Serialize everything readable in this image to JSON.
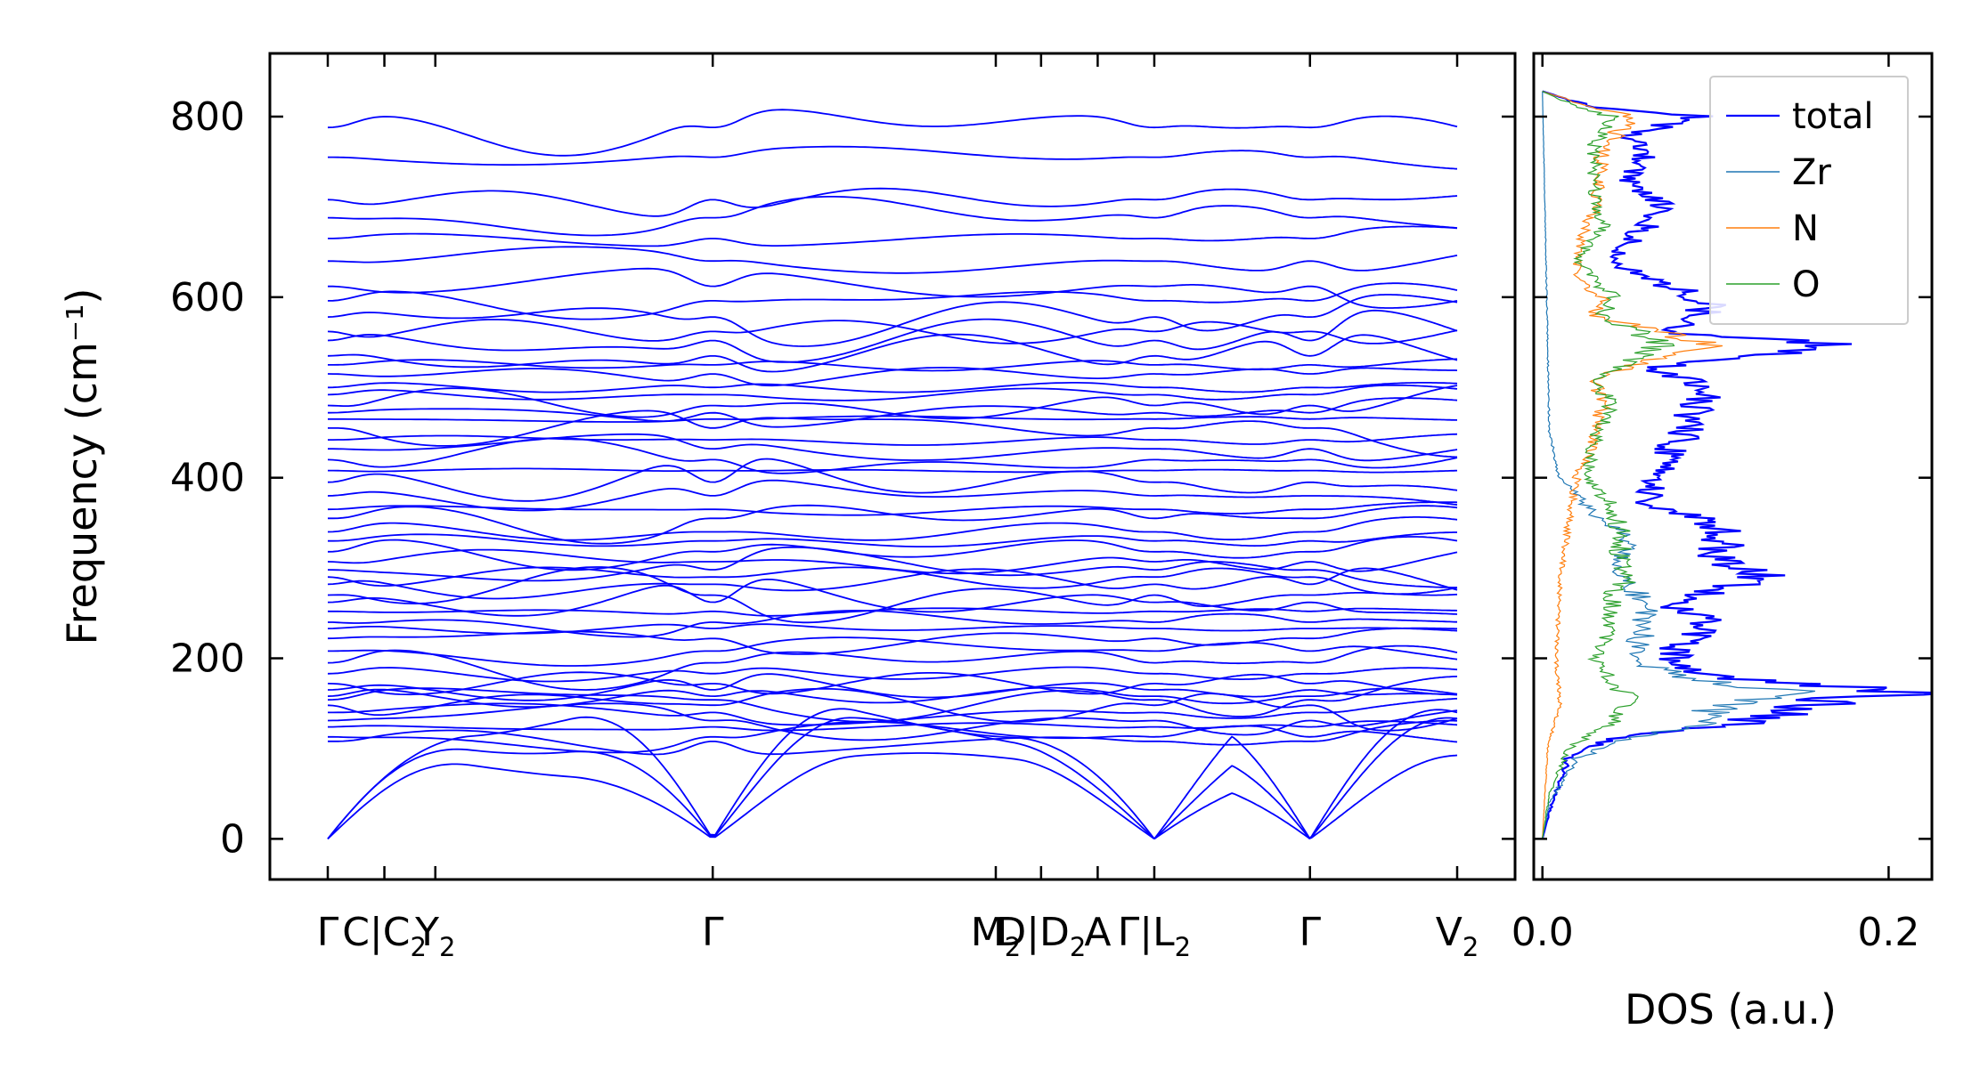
{
  "chart_data": [
    {
      "type": "line",
      "subtype": "phonon-band-structure",
      "ylabel": "Frequency (cm⁻¹)",
      "ylim": [
        -45,
        870
      ],
      "yticks": [
        0,
        200,
        400,
        600,
        800
      ],
      "line_color": "#0000ff",
      "segments": [
        {
          "kpath": [
            0,
            0.2,
            0.38,
            1.36,
            2.36,
            2.52,
            2.72,
            2.92
          ]
        },
        {
          "kpath": [
            2.92,
            3.47,
            3.99
          ]
        }
      ],
      "xtick_labels": [
        {
          "k": 0,
          "text": "Γ"
        },
        {
          "k": 0.2,
          "text": "C|C",
          "sub": "2"
        },
        {
          "k": 0.38,
          "text": "Y",
          "sub": "2"
        },
        {
          "k": 1.36,
          "text": "Γ"
        },
        {
          "k": 2.36,
          "text": "M",
          "sub": "2"
        },
        {
          "k": 2.52,
          "text": "D|D",
          "sub": "2"
        },
        {
          "k": 2.72,
          "text": "A"
        },
        {
          "k": 2.92,
          "text": "Γ|L",
          "sub": "2"
        },
        {
          "k": 3.47,
          "text": "Γ"
        },
        {
          "k": 3.99,
          "text": "V",
          "sub": "2"
        }
      ],
      "gamma_frequencies": [
        0,
        0,
        0,
        108,
        113,
        124,
        131,
        140,
        148,
        154,
        158,
        165,
        172,
        183,
        195,
        208,
        222,
        233,
        240,
        252,
        262,
        270,
        282,
        290,
        298,
        307,
        318,
        330,
        340,
        355,
        365,
        380,
        395,
        408,
        420,
        432,
        442,
        455,
        465,
        472,
        480,
        492,
        500,
        515,
        525,
        535,
        552,
        562,
        578,
        596,
        612,
        640,
        665,
        688,
        708,
        755,
        788
      ]
    },
    {
      "type": "line",
      "subtype": "density-of-states",
      "xlabel": "DOS (a.u.)",
      "xlim": [
        -0.005,
        0.225
      ],
      "xticks": [
        0.0,
        0.2
      ],
      "xtick_labels": [
        "0.0",
        "0.2"
      ],
      "ylim": [
        -45,
        870
      ],
      "legend_position": "top-right",
      "series": [
        {
          "name": "total",
          "color": "#0000ff",
          "peaks": [
            [
              0,
              0
            ],
            [
              30,
              0.004
            ],
            [
              90,
              0.015
            ],
            [
              110,
              0.04
            ],
            [
              130,
              0.12
            ],
            [
              145,
              0.15
            ],
            [
              155,
              0.17
            ],
            [
              163,
              0.215
            ],
            [
              170,
              0.16
            ],
            [
              180,
              0.1
            ],
            [
              200,
              0.075
            ],
            [
              215,
              0.08
            ],
            [
              240,
              0.095
            ],
            [
              260,
              0.075
            ],
            [
              290,
              0.13
            ],
            [
              310,
              0.1
            ],
            [
              330,
              0.105
            ],
            [
              352,
              0.1
            ],
            [
              370,
              0.06
            ],
            [
              400,
              0.065
            ],
            [
              420,
              0.07
            ],
            [
              445,
              0.08
            ],
            [
              470,
              0.085
            ],
            [
              500,
              0.1
            ],
            [
              520,
              0.06
            ],
            [
              548,
              0.175
            ],
            [
              560,
              0.07
            ],
            [
              590,
              0.1
            ],
            [
              615,
              0.07
            ],
            [
              640,
              0.04
            ],
            [
              660,
              0.05
            ],
            [
              700,
              0.07
            ],
            [
              730,
              0.05
            ],
            [
              760,
              0.06
            ],
            [
              780,
              0.05
            ],
            [
              800,
              0.09
            ],
            [
              810,
              0.03
            ],
            [
              828,
              0.0
            ]
          ]
        },
        {
          "name": "Zr",
          "color": "#1f77b4",
          "peaks": [
            [
              0,
              0
            ],
            [
              40,
              0.004
            ],
            [
              90,
              0.02
            ],
            [
              110,
              0.05
            ],
            [
              130,
              0.1
            ],
            [
              145,
              0.1
            ],
            [
              155,
              0.12
            ],
            [
              163,
              0.15
            ],
            [
              175,
              0.09
            ],
            [
              200,
              0.05
            ],
            [
              230,
              0.06
            ],
            [
              260,
              0.06
            ],
            [
              290,
              0.045
            ],
            [
              330,
              0.05
            ],
            [
              360,
              0.03
            ],
            [
              400,
              0.01
            ],
            [
              450,
              0.004
            ],
            [
              550,
              0.003
            ],
            [
              650,
              0.002
            ],
            [
              828,
              0.0
            ]
          ]
        },
        {
          "name": "N",
          "color": "#ff7f0e",
          "peaks": [
            [
              0,
              0
            ],
            [
              100,
              0.003
            ],
            [
              150,
              0.01
            ],
            [
              200,
              0.008
            ],
            [
              280,
              0.01
            ],
            [
              350,
              0.015
            ],
            [
              400,
              0.02
            ],
            [
              440,
              0.03
            ],
            [
              480,
              0.035
            ],
            [
              510,
              0.03
            ],
            [
              548,
              0.095
            ],
            [
              580,
              0.03
            ],
            [
              600,
              0.035
            ],
            [
              620,
              0.02
            ],
            [
              650,
              0.02
            ],
            [
              700,
              0.03
            ],
            [
              760,
              0.035
            ],
            [
              800,
              0.05
            ],
            [
              815,
              0.02
            ],
            [
              828,
              0.0
            ]
          ]
        },
        {
          "name": "O",
          "color": "#2ca02c",
          "peaks": [
            [
              0,
              0
            ],
            [
              50,
              0.004
            ],
            [
              100,
              0.015
            ],
            [
              130,
              0.04
            ],
            [
              155,
              0.05
            ],
            [
              165,
              0.045
            ],
            [
              200,
              0.03
            ],
            [
              240,
              0.04
            ],
            [
              270,
              0.04
            ],
            [
              290,
              0.05
            ],
            [
              310,
              0.045
            ],
            [
              340,
              0.045
            ],
            [
              370,
              0.04
            ],
            [
              400,
              0.025
            ],
            [
              440,
              0.03
            ],
            [
              480,
              0.04
            ],
            [
              510,
              0.03
            ],
            [
              548,
              0.07
            ],
            [
              580,
              0.035
            ],
            [
              600,
              0.04
            ],
            [
              640,
              0.02
            ],
            [
              680,
              0.035
            ],
            [
              720,
              0.03
            ],
            [
              770,
              0.03
            ],
            [
              800,
              0.04
            ],
            [
              815,
              0.015
            ],
            [
              828,
              0.0
            ]
          ]
        }
      ]
    }
  ]
}
